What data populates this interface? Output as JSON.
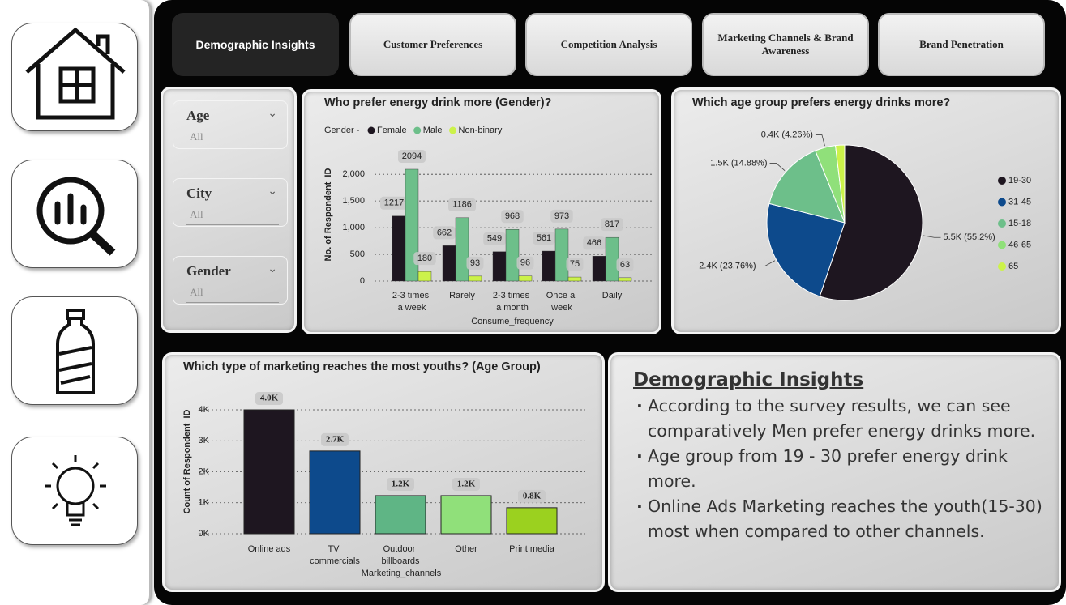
{
  "tabs": [
    "Demographic Insights",
    "Customer Preferences",
    "Competition Analysis",
    "Marketing Channels & Brand Awareness",
    "Brand Penetration"
  ],
  "filters": [
    {
      "label": "Age",
      "value": "All"
    },
    {
      "label": "City",
      "value": "All"
    },
    {
      "label": "Gender",
      "value": "All"
    }
  ],
  "chart_data": [
    {
      "type": "bar",
      "title": "Who prefer energy drink more (Gender)?",
      "legend_title": "Gender -",
      "categories": [
        "2-3 times a week",
        "Rarely",
        "2-3 times a month",
        "Once a week",
        "Daily"
      ],
      "series": [
        {
          "name": "Female",
          "color": "#1e1620",
          "values": [
            1217,
            662,
            549,
            561,
            466
          ]
        },
        {
          "name": "Male",
          "color": "#6dbf8a",
          "values": [
            2094,
            1186,
            968,
            973,
            817
          ]
        },
        {
          "name": "Non-binary",
          "color": "#ccf24a",
          "values": [
            180,
            93,
            96,
            75,
            63
          ]
        }
      ],
      "xlabel": "Consume_frequency",
      "ylabel": "No. of Respondent_ID",
      "ylim": [
        0,
        2200
      ],
      "yticks": [
        0,
        500,
        {
          "value": 1000,
          "label": "1,000"
        },
        {
          "value": 1500,
          "label": "1,500"
        },
        {
          "value": 2000,
          "label": "2,000"
        }
      ],
      "grid": true,
      "legend": "top"
    },
    {
      "type": "pie",
      "title": "Which age group prefers energy drinks more?",
      "categories": [
        "19-30",
        "31-45",
        "15-18",
        "46-65",
        "65+"
      ],
      "values": [
        55.2,
        23.76,
        14.88,
        4.26,
        1.9
      ],
      "value_labels": [
        "5.5K (55.2%)",
        "2.4K (23.76%)",
        "1.5K (14.88%)",
        "0.4K (4.26%)",
        null
      ],
      "colors": [
        "#1e1620",
        "#0d4a8c",
        "#6dbf8a",
        "#90e07a",
        "#ccf24a"
      ],
      "legend": "right"
    },
    {
      "type": "bar",
      "title": "Which type of marketing reaches the most youths? (Age Group)",
      "categories": [
        "Online ads",
        "TV commercials",
        "Outdoor billboards",
        "Other",
        "Print media"
      ],
      "values": [
        4000,
        2670,
        1230,
        1230,
        840
      ],
      "value_labels": [
        "4.0K",
        "2.7K",
        "1.2K",
        "1.2K",
        "0.8K"
      ],
      "colors": [
        "#1e1620",
        "#0d4a8c",
        "#5fb585",
        "#90e07a",
        "#9bd11f"
      ],
      "xlabel": "Marketing_channels",
      "ylabel": "Count of Respondent_ID",
      "ylim": [
        0,
        4000
      ],
      "yticks": [
        {
          "value": 0,
          "label": "0K"
        },
        {
          "value": 1000,
          "label": "1K"
        },
        {
          "value": 2000,
          "label": "2K"
        },
        {
          "value": 3000,
          "label": "3K"
        },
        {
          "value": 4000,
          "label": "4K"
        }
      ],
      "grid": true
    }
  ],
  "insights": {
    "title": "Demographic Insights",
    "points": [
      "According to the survey results, we can see comparatively Men prefer energy drinks more.",
      "Age group from 19 - 30 prefer energy drink more.",
      "Online Ads Marketing reaches the youth(15-30) most when compared to other channels."
    ]
  }
}
